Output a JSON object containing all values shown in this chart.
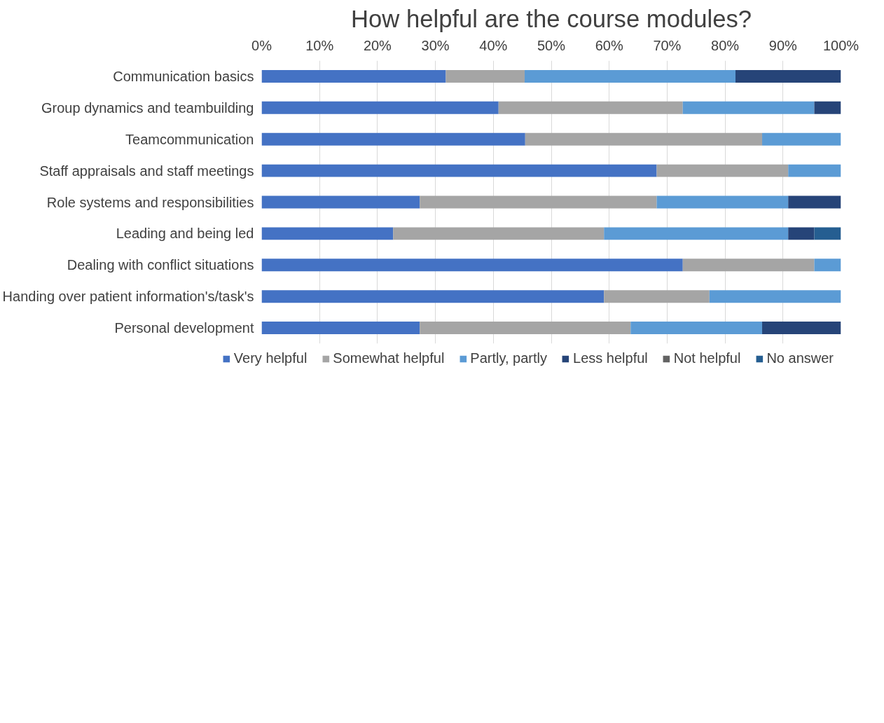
{
  "chart_data": {
    "type": "bar",
    "orientation": "horizontal",
    "stacked": true,
    "title": "How helpful are the course modules?",
    "categories": [
      "Communication basics",
      "Group dynamics and teambuilding",
      "Teamcommunication",
      "Staff appraisals and staff meetings",
      "Role systems and responsibilities",
      "Leading and being led",
      "Dealing with conflict situations",
      "Handing over patient information's/task's",
      "Personal development"
    ],
    "series": [
      {
        "name": "Very helpful",
        "color": "#4472c4",
        "values": [
          31.8,
          40.9,
          45.5,
          68.2,
          27.3,
          22.7,
          72.7,
          59.1,
          27.3
        ]
      },
      {
        "name": "Somewhat helpful",
        "color": "#a5a5a5",
        "values": [
          13.6,
          31.8,
          40.9,
          22.7,
          40.9,
          36.4,
          22.7,
          18.2,
          36.4
        ]
      },
      {
        "name": "Partly, partly",
        "color": "#5b9bd5",
        "values": [
          36.4,
          22.7,
          13.6,
          9.1,
          22.7,
          31.8,
          4.6,
          22.7,
          22.7
        ]
      },
      {
        "name": "Less helpful",
        "color": "#264478",
        "values": [
          18.2,
          4.6,
          0,
          0,
          9.1,
          4.5,
          0,
          0,
          13.6
        ]
      },
      {
        "name": "Not helpful",
        "color": "#636363",
        "values": [
          0,
          0,
          0,
          0,
          0,
          0,
          0,
          0,
          0
        ]
      },
      {
        "name": "No answer",
        "color": "#255e91",
        "values": [
          0,
          0,
          0,
          0,
          0,
          4.6,
          0,
          0,
          0
        ]
      }
    ],
    "xlim": [
      0,
      100
    ],
    "xticks": [
      {
        "value": 0,
        "label": "0%"
      },
      {
        "value": 10,
        "label": "10%"
      },
      {
        "value": 20,
        "label": "20%"
      },
      {
        "value": 30,
        "label": "30%"
      },
      {
        "value": 40,
        "label": "40%"
      },
      {
        "value": 50,
        "label": "50%"
      },
      {
        "value": 60,
        "label": "60%"
      },
      {
        "value": 70,
        "label": "70%"
      },
      {
        "value": 80,
        "label": "80%"
      },
      {
        "value": 90,
        "label": "90%"
      },
      {
        "value": 100,
        "label": "100%"
      }
    ],
    "grid": "x",
    "legend": "bottom"
  }
}
